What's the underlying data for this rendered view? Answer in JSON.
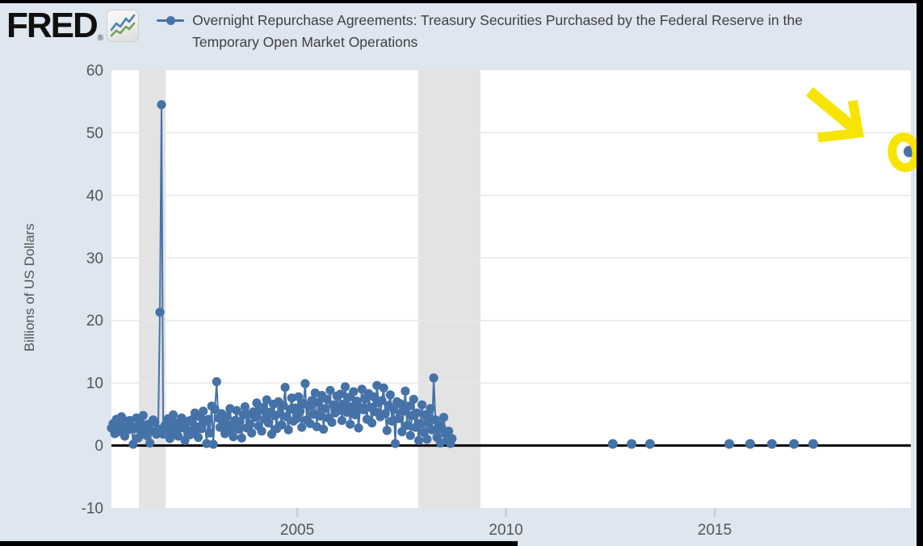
{
  "logo": {
    "text": "FRED",
    "registered": "®",
    "icon": "fred-sparkline-icon"
  },
  "legend": {
    "label": "Overnight Repurchase Agreements: Treasury Securities Purchased by the Federal Reserve in the Temporary Open Market Operations",
    "marker": "line-dot-marker"
  },
  "colors": {
    "background": "#dee6ef",
    "plot_background": "#ffffff",
    "grid": "#e7e7e7",
    "recession_band": "#e3e3e3",
    "series_blue": "#4572a7",
    "zero_line": "#000000",
    "axis_text": "#555555",
    "tick_mark": "#bfcada",
    "annotation_yellow": "#f7e400",
    "frame_black": "#000000"
  },
  "chart_data": {
    "type": "line",
    "title": "Overnight Repurchase Agreements: Treasury Securities Purchased by the Federal Reserve in the Temporary Open Market Operations",
    "xlabel": "",
    "ylabel": "Billions of US Dollars",
    "ylim": [
      -10,
      60
    ],
    "xlim": [
      2000.55,
      2019.7
    ],
    "y_ticks": [
      60,
      50,
      40,
      30,
      20,
      10,
      0,
      -10
    ],
    "x_ticks": [
      2005,
      2010,
      2015
    ],
    "grid": "horizontal-only",
    "legend_position": "top",
    "recession_bands": [
      [
        2001.21,
        2001.85
      ],
      [
        2007.9,
        2009.39
      ]
    ],
    "series": [
      {
        "name": "Overnight Repurchase Agreements: Treasury Securities Purchased by the Federal Reserve in the Temporary Open Market Operations",
        "units": "Billions of US Dollars",
        "x_start": 2000.55,
        "x_step": 0.04,
        "values": [
          2.8,
          3.5,
          1.9,
          4.2,
          3.0,
          2.2,
          4.6,
          3.3,
          1.5,
          3.9,
          2.5,
          4.0,
          3.1,
          0.2,
          2.7,
          4.4,
          1.2,
          3.6,
          2.0,
          4.8,
          2.9,
          1.6,
          3.4,
          0.4,
          2.3,
          4.1,
          3.7,
          1.8,
          2.6,
          21.3,
          54.5,
          1.8,
          3.2,
          2.4,
          4.3,
          1.1,
          3.0,
          4.9,
          2.1,
          3.6,
          1.5,
          2.8,
          4.4,
          3.3,
          0.8,
          2.5,
          3.9,
          1.7,
          4.1,
          2.3,
          5.2,
          3.0,
          1.3,
          4.6,
          2.7,
          5.5,
          3.8,
          0.3,
          4.2,
          2.0,
          6.3,
          0.2,
          5.8,
          10.2,
          4.4,
          2.9,
          5.1,
          3.5,
          1.9,
          4.7,
          2.4,
          5.9,
          3.2,
          1.4,
          4.0,
          5.6,
          2.6,
          3.8,
          1.2,
          4.9,
          6.2,
          2.8,
          5.0,
          3.4,
          2.0,
          5.4,
          4.5,
          6.8,
          3.1,
          5.7,
          2.3,
          6.1,
          4.2,
          7.3,
          3.6,
          5.3,
          1.8,
          6.6,
          4.8,
          2.7,
          7.0,
          5.1,
          3.3,
          6.4,
          9.3,
          4.6,
          2.5,
          5.8,
          7.6,
          3.9,
          6.0,
          4.3,
          7.8,
          5.5,
          2.9,
          6.7,
          9.9,
          4.1,
          6.3,
          3.5,
          7.2,
          5.0,
          8.4,
          3.0,
          6.9,
          4.7,
          8.0,
          2.6,
          5.9,
          7.4,
          4.4,
          8.8,
          3.7,
          6.5,
          5.2,
          7.9,
          5.6,
          8.2,
          4.0,
          6.6,
          9.4,
          5.3,
          7.7,
          3.4,
          6.2,
          8.6,
          4.9,
          7.1,
          2.8,
          6.0,
          9.0,
          5.7,
          7.5,
          4.2,
          8.3,
          6.1,
          3.6,
          7.8,
          5.4,
          9.6,
          6.8,
          4.6,
          7.2,
          9.2,
          5.1,
          2.4,
          6.4,
          8.1,
          3.9,
          5.8,
          0.3,
          7.0,
          4.3,
          6.7,
          2.2,
          5.5,
          8.7,
          3.2,
          6.3,
          1.6,
          4.8,
          7.4,
          2.9,
          5.2,
          0.8,
          3.5,
          6.5,
          2.1,
          4.9,
          1.0,
          3.7,
          5.9,
          2.5,
          10.8,
          4.1,
          1.3,
          3.3,
          0.4,
          2.7,
          4.5,
          1.9,
          0.9,
          2.3,
          0.3,
          1.1
        ]
      }
    ],
    "isolated_points": [
      [
        2012.56,
        0.25
      ],
      [
        2013.01,
        0.25
      ],
      [
        2013.45,
        0.25
      ],
      [
        2015.35,
        0.25
      ],
      [
        2015.85,
        0.25
      ],
      [
        2016.37,
        0.25
      ],
      [
        2016.9,
        0.25
      ],
      [
        2017.36,
        0.25
      ]
    ],
    "highlight_point": {
      "x": 2019.66,
      "y": 47.0,
      "note": "circled-in-yellow-with-arrow"
    },
    "peak_annotations": [
      {
        "x": 2001.75,
        "y": 54.5,
        "desc": "september-2001-spike"
      },
      {
        "x": 2001.71,
        "y": 21.3,
        "desc": "september-2001-secondary"
      },
      {
        "x": 2003.07,
        "y": 10.2,
        "desc": "2003-lollipop"
      },
      {
        "x": 2008.27,
        "y": 10.8,
        "desc": "2008-lollipop"
      }
    ]
  }
}
